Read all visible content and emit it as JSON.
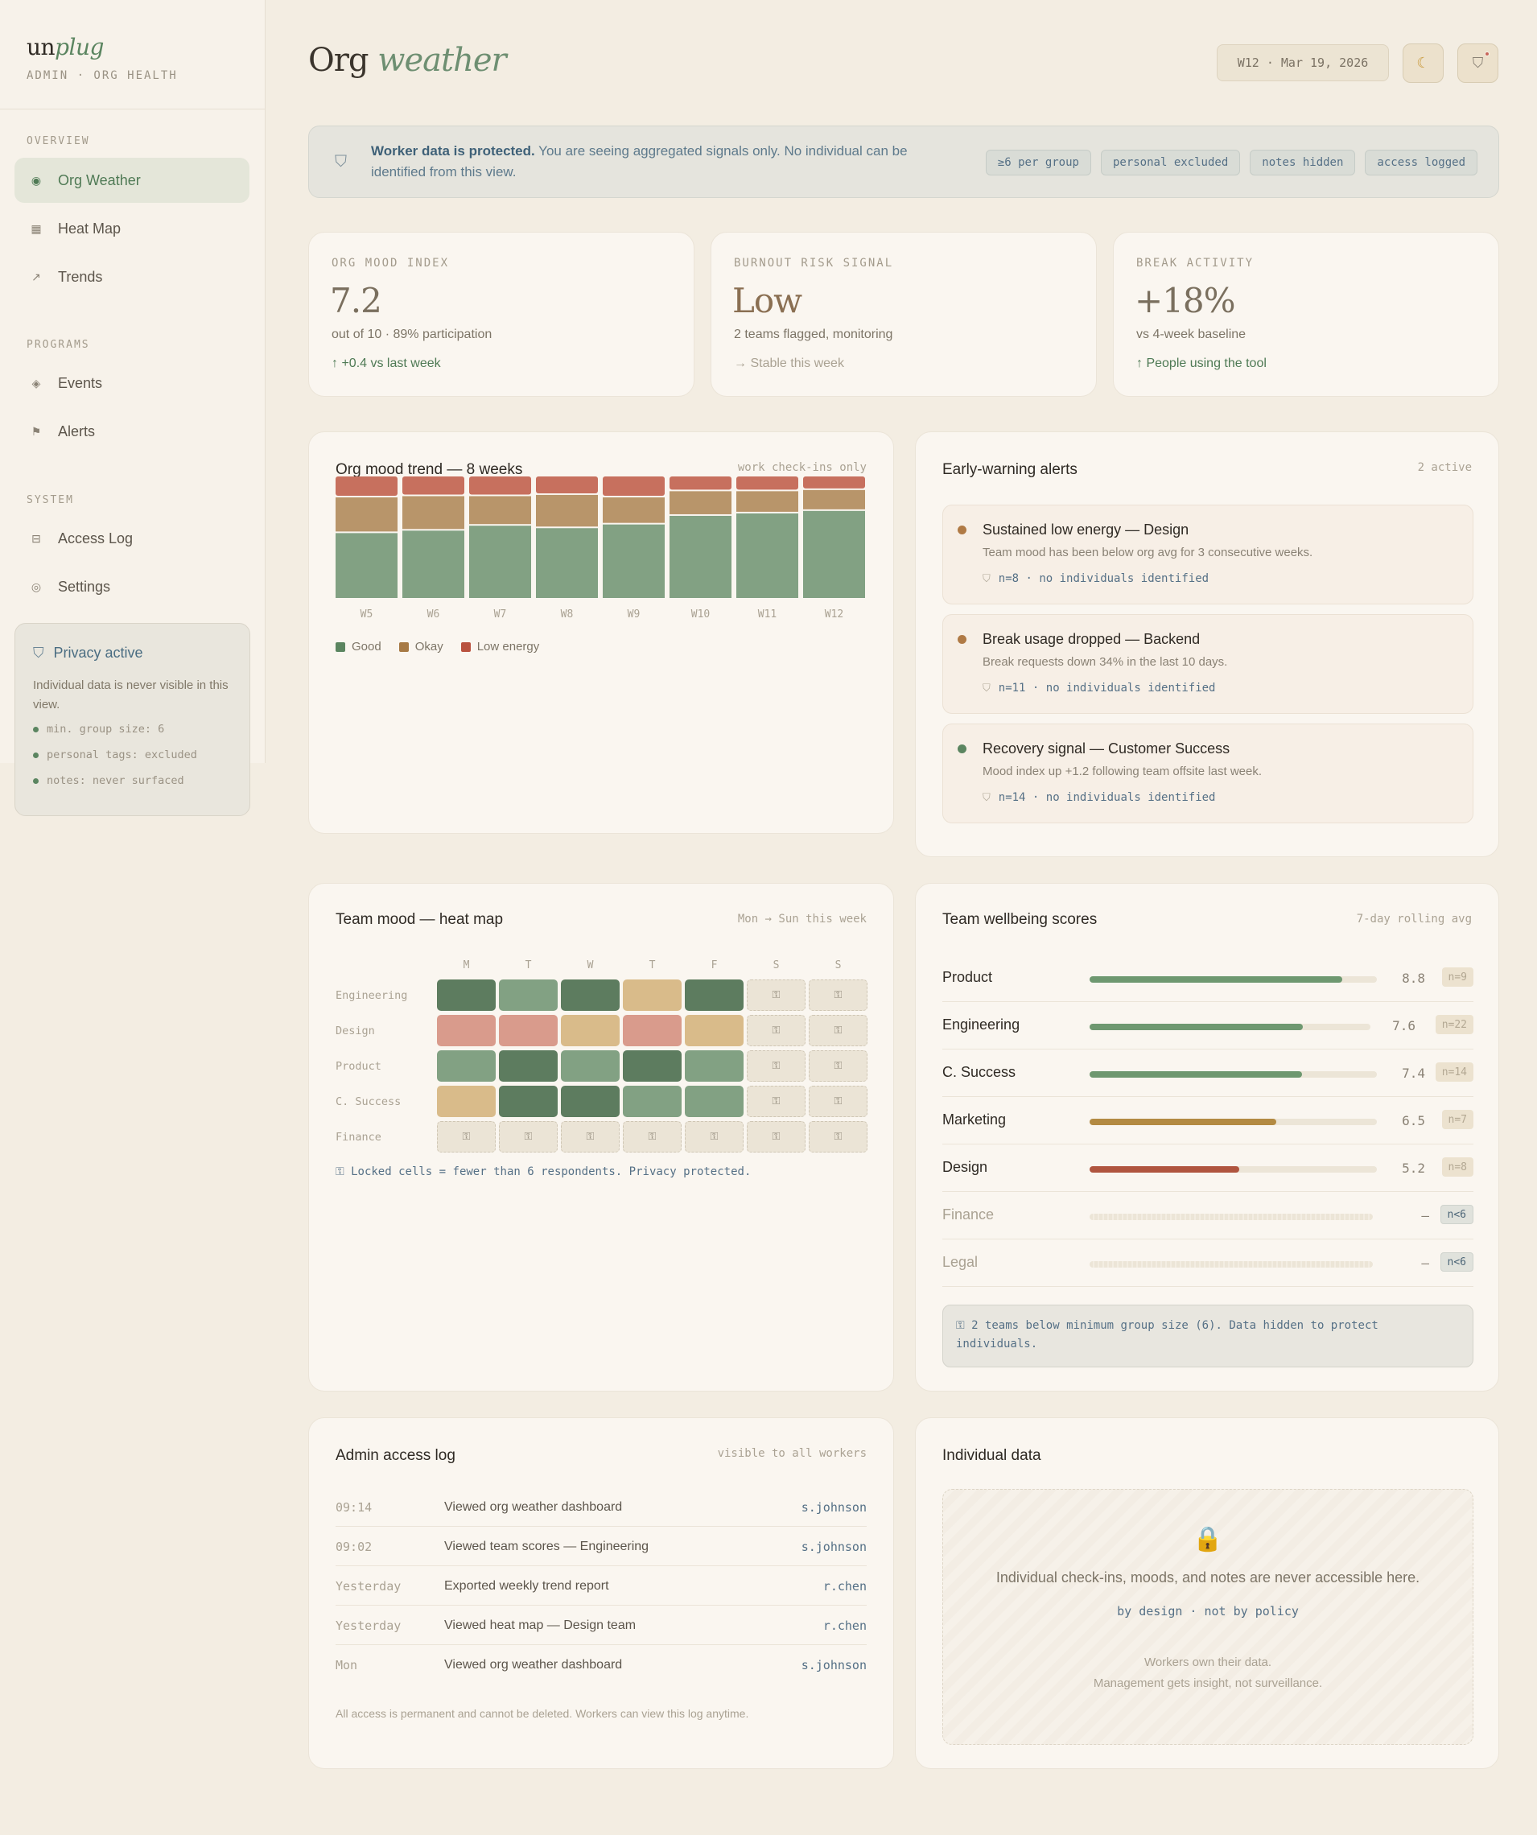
{
  "app": {
    "logo_prefix": "un",
    "logo_suffix": "plug",
    "subtitle": "ADMIN · ORG HEALTH"
  },
  "sidebar": {
    "sections": [
      {
        "label": "OVERVIEW",
        "items": [
          {
            "label": "Org Weather",
            "icon": "target-icon",
            "active": true
          },
          {
            "label": "Heat Map",
            "icon": "grid-icon"
          },
          {
            "label": "Trends",
            "icon": "trend-arrow-icon"
          }
        ]
      },
      {
        "label": "PROGRAMS",
        "items": [
          {
            "label": "Events",
            "icon": "diamond-icon"
          },
          {
            "label": "Alerts",
            "icon": "flag-icon"
          }
        ]
      },
      {
        "label": "SYSTEM",
        "items": [
          {
            "label": "Access Log",
            "icon": "log-icon"
          },
          {
            "label": "Settings",
            "icon": "gear-icon"
          }
        ]
      }
    ],
    "privacy": {
      "title": "Privacy active",
      "description": "Individual data is never visible in this view.",
      "items": [
        "min. group size: 6",
        "personal tags: excluded",
        "notes: never surfaced"
      ]
    }
  },
  "header": {
    "title_a": "Org",
    "title_b": "weather",
    "date": "W12 · Mar 19, 2026",
    "theme_icon": "moon-icon",
    "shield_icon": "shield-icon"
  },
  "banner": {
    "bold": "Worker data is protected.",
    "text": " You are seeing aggregated signals only. No individual can be identified from this view.",
    "chips": [
      "≥6 per group",
      "personal excluded",
      "notes hidden",
      "access logged"
    ]
  },
  "kpis": [
    {
      "label": "ORG MOOD INDEX",
      "value": "7.2",
      "sub": "out of 10 · 89% participation",
      "trend": "↑ +0.4 vs last week",
      "trend_type": "up"
    },
    {
      "label": "BURNOUT RISK SIGNAL",
      "value": "Low",
      "sub": "2 teams flagged, monitoring",
      "trend": "→ Stable this week",
      "trend_type": "neutral"
    },
    {
      "label": "BREAK ACTIVITY",
      "value": "+18%",
      "sub": "vs 4-week baseline",
      "trend": "↑ People using the tool",
      "trend_type": "up"
    }
  ],
  "trend": {
    "title": "Org mood trend — 8 weeks",
    "note": "work check-ins only",
    "chart_data": {
      "type": "bar",
      "stacked": true,
      "categories": [
        "W5",
        "W6",
        "W7",
        "W8",
        "W9",
        "W10",
        "W11",
        "W12"
      ],
      "series": [
        {
          "name": "Good",
          "values": [
            54,
            56,
            60,
            58,
            61,
            68,
            70,
            72
          ]
        },
        {
          "name": "Okay",
          "values": [
            29,
            28,
            24,
            27,
            22,
            20,
            18,
            17
          ]
        },
        {
          "name": "Low energy",
          "values": [
            17,
            16,
            16,
            15,
            17,
            12,
            12,
            11
          ]
        }
      ],
      "colors": [
        "#82a183",
        "#b8956a",
        "#c7705e"
      ]
    }
  },
  "alerts": {
    "title": "Early-warning alerts",
    "note": "2 active",
    "items": [
      {
        "title": "Sustained low energy — Design",
        "desc": "Team mood has been below org avg for 3 consecutive weeks.",
        "meta": "n=8 · no individuals identified",
        "color": "#b07a45"
      },
      {
        "title": "Break usage dropped — Backend",
        "desc": "Break requests down 34% in the last 10 days.",
        "meta": "n=11 · no individuals identified",
        "color": "#b07a45"
      },
      {
        "title": "Recovery signal — Customer Success",
        "desc": "Mood index up +1.2 following team offsite last week.",
        "meta": "n=14 · no individuals identified",
        "color": "#5b8560"
      }
    ]
  },
  "heatmap": {
    "title": "Team mood — heat map",
    "note": "Mon → Sun this week",
    "days": [
      "M",
      "T",
      "W",
      "T",
      "F",
      "S",
      "S"
    ],
    "lock_glyph": "⚿",
    "teams": [
      {
        "name": "Engineering",
        "cells": [
          "#5d7c5f",
          "#82a183",
          "#5d7c5f",
          "#d9bb8a",
          "#5d7c5f",
          "lock",
          "lock"
        ]
      },
      {
        "name": "Design",
        "cells": [
          "#d99b8c",
          "#d99b8c",
          "#d9bb8a",
          "#d99b8c",
          "#d9bb8a",
          "lock",
          "lock"
        ]
      },
      {
        "name": "Product",
        "cells": [
          "#82a183",
          "#5d7c5f",
          "#82a183",
          "#5d7c5f",
          "#82a183",
          "lock",
          "lock"
        ]
      },
      {
        "name": "C. Success",
        "cells": [
          "#d9bb8a",
          "#5d7c5f",
          "#5d7c5f",
          "#82a183",
          "#82a183",
          "lock",
          "lock"
        ]
      },
      {
        "name": "Finance",
        "cells": [
          "lock",
          "lock",
          "lock",
          "lock",
          "lock",
          "lock",
          "lock"
        ]
      }
    ],
    "footer": "⚿ Locked cells = fewer than 6 respondents. Privacy protected."
  },
  "wellbeing": {
    "title": "Team wellbeing scores",
    "note": "7-day rolling avg",
    "teams": [
      {
        "name": "Product",
        "score": "8.8",
        "fill": 0.88,
        "n": "n=9",
        "color": "#6e9870"
      },
      {
        "name": "Engineering",
        "score": "7.6",
        "fill": 0.76,
        "n": "n=22",
        "color": "#6e9870"
      },
      {
        "name": "C. Success",
        "score": "7.4",
        "fill": 0.74,
        "n": "n=14",
        "color": "#6e9870"
      },
      {
        "name": "Marketing",
        "score": "6.5",
        "fill": 0.65,
        "n": "n=7",
        "color": "#b38a42"
      },
      {
        "name": "Design",
        "score": "5.2",
        "fill": 0.52,
        "n": "n=8",
        "color": "#b0553f"
      },
      {
        "name": "Finance",
        "score": "—",
        "fill": 0,
        "n": "n<6",
        "color": "",
        "hidden": true
      },
      {
        "name": "Legal",
        "score": "—",
        "fill": 0,
        "n": "n<6",
        "color": "",
        "hidden": true
      }
    ],
    "footer": "⚿ 2 teams below minimum group size (6). Data hidden to protect individuals."
  },
  "access_log": {
    "title": "Admin access log",
    "note": "visible to all workers",
    "rows": [
      {
        "time": "09:14",
        "action": "Viewed org weather dashboard",
        "user": "s.johnson"
      },
      {
        "time": "09:02",
        "action": "Viewed team scores — Engineering",
        "user": "s.johnson"
      },
      {
        "time": "Yesterday",
        "action": "Exported weekly trend report",
        "user": "r.chen"
      },
      {
        "time": "Yesterday",
        "action": "Viewed heat map — Design team",
        "user": "r.chen"
      },
      {
        "time": "Mon",
        "action": "Viewed org weather dashboard",
        "user": "s.johnson"
      }
    ],
    "footer": "All access is permanent and cannot be deleted. Workers can view this log anytime."
  },
  "individual": {
    "title": "Individual data",
    "lock_glyph": "🔒",
    "main": "Individual check-ins, moods, and notes are never accessible here.",
    "mono": "by design · not by policy",
    "foot1": "Workers own their data.",
    "foot2": "Management gets insight, not surveillance."
  }
}
